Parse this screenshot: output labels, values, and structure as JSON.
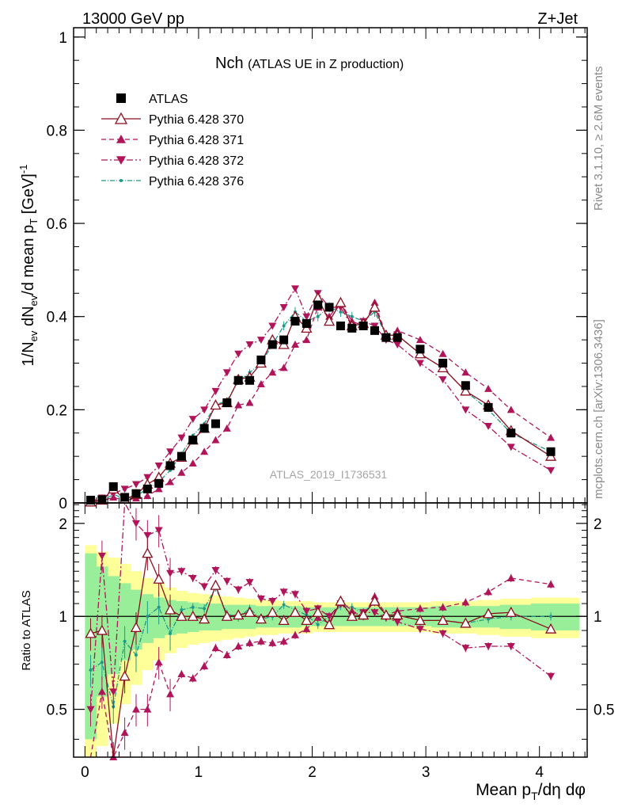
{
  "header": {
    "energy": "13000 GeV pp",
    "process": "Z+Jet"
  },
  "side": {
    "rivet": "Rivet 3.1.10, ≥ 2.6M events",
    "source": "mcplots.cern.ch [arXiv:1306.3436]"
  },
  "chart_data": [
    {
      "type": "line",
      "title": "Nch",
      "subtitle": "(ATLAS UE in Z production)",
      "watermark": "ATLAS_2019_I1736531",
      "ylabel": {
        "base1": "1/N",
        "sub1": "ev",
        "base2": " dN",
        "sub2": "ev",
        "base3": "/d mean p",
        "sub3": "T",
        "base4": " [GeV]",
        "sup4": "-1"
      },
      "xlim": [
        -0.1,
        4.42
      ],
      "ylim": [
        0,
        1.02
      ],
      "yticks": [
        0,
        0.2,
        0.4,
        0.6,
        0.8,
        1
      ],
      "ytick_labels": [
        "0",
        "0.2",
        "0.4",
        "0.6",
        "0.8",
        "1"
      ],
      "legend_position": "top-left",
      "x": [
        0.05,
        0.15,
        0.25,
        0.35,
        0.45,
        0.55,
        0.65,
        0.75,
        0.85,
        0.95,
        1.05,
        1.15,
        1.25,
        1.35,
        1.45,
        1.55,
        1.65,
        1.75,
        1.85,
        1.95,
        2.05,
        2.15,
        2.25,
        2.35,
        2.45,
        2.55,
        2.65,
        2.75,
        2.95,
        3.15,
        3.35,
        3.55,
        3.75,
        4.1
      ],
      "series": [
        {
          "name": "ATLAS",
          "color": "#000000",
          "marker": "square",
          "dash": "none",
          "values": [
            0.006,
            0.007,
            0.035,
            0.012,
            0.02,
            0.03,
            0.042,
            0.08,
            0.1,
            0.135,
            0.16,
            0.17,
            0.215,
            0.263,
            0.263,
            0.307,
            0.34,
            0.35,
            0.39,
            0.385,
            0.425,
            0.42,
            0.38,
            0.375,
            0.38,
            0.37,
            0.355,
            0.355,
            0.33,
            0.3,
            0.252,
            0.205,
            0.15,
            0.11
          ]
        },
        {
          "name": "Pythia 6.428 370",
          "color": "#8b0f1f",
          "marker": "triangle-up-open",
          "dash": "none",
          "values": [
            0.002,
            0.006,
            0.03,
            0.008,
            0.018,
            0.04,
            0.055,
            0.085,
            0.098,
            0.135,
            0.16,
            0.21,
            0.215,
            0.265,
            0.27,
            0.3,
            0.35,
            0.34,
            0.4,
            0.375,
            0.44,
            0.39,
            0.43,
            0.38,
            0.385,
            0.42,
            0.36,
            0.36,
            0.32,
            0.29,
            0.24,
            0.21,
            0.155,
            0.1
          ]
        },
        {
          "name": "Pythia 6.428 371",
          "color": "#b0155a",
          "marker": "triangle-up",
          "dash": "6,4",
          "values": [
            0.001,
            0.004,
            0.012,
            0.005,
            0.01,
            0.015,
            0.03,
            0.045,
            0.065,
            0.085,
            0.11,
            0.135,
            0.16,
            0.21,
            0.215,
            0.255,
            0.28,
            0.29,
            0.34,
            0.35,
            0.42,
            0.4,
            0.43,
            0.39,
            0.38,
            0.43,
            0.36,
            0.37,
            0.35,
            0.32,
            0.28,
            0.245,
            0.2,
            0.14
          ]
        },
        {
          "name": "Pythia 6.428 372",
          "color": "#b0155a",
          "marker": "triangle-down",
          "dash": "8,3,2,3",
          "values": [
            0.003,
            0.011,
            0.02,
            0.03,
            0.04,
            0.055,
            0.08,
            0.11,
            0.14,
            0.18,
            0.2,
            0.24,
            0.28,
            0.32,
            0.34,
            0.35,
            0.38,
            0.42,
            0.46,
            0.4,
            0.45,
            0.42,
            0.42,
            0.38,
            0.39,
            0.38,
            0.35,
            0.34,
            0.3,
            0.265,
            0.2,
            0.165,
            0.12,
            0.07
          ]
        },
        {
          "name": "Pythia 6.428 376",
          "color": "#1f9a8a",
          "marker": "dot",
          "dash": "6,2,1,2",
          "values": [
            0.004,
            0.005,
            0.018,
            0.01,
            0.015,
            0.03,
            0.045,
            0.07,
            0.105,
            0.145,
            0.17,
            0.21,
            0.22,
            0.26,
            0.28,
            0.3,
            0.34,
            0.38,
            0.41,
            0.39,
            0.4,
            0.42,
            0.41,
            0.4,
            0.39,
            0.41,
            0.36,
            0.36,
            0.32,
            0.29,
            0.24,
            0.2,
            0.15,
            0.11
          ]
        }
      ]
    },
    {
      "type": "line",
      "ylabel": "Ratio to ATLAS",
      "xlabel": {
        "base1": "Mean p",
        "sub1": "T",
        "base2": "/dη dφ"
      },
      "xlim": [
        -0.1,
        4.42
      ],
      "ylim": [
        0.35,
        2.33
      ],
      "xticks": [
        0,
        1,
        2,
        3,
        4
      ],
      "xtick_labels": [
        "0",
        "1",
        "2",
        "3",
        "4"
      ],
      "yticks": [
        0.5,
        1,
        2
      ],
      "ytick_labels": [
        "0.5",
        "1",
        "2"
      ],
      "x": [
        0.05,
        0.15,
        0.25,
        0.35,
        0.45,
        0.55,
        0.65,
        0.75,
        0.85,
        0.95,
        1.05,
        1.15,
        1.25,
        1.35,
        1.45,
        1.55,
        1.65,
        1.75,
        1.85,
        1.95,
        2.05,
        2.15,
        2.25,
        2.35,
        2.45,
        2.55,
        2.65,
        2.75,
        2.95,
        3.15,
        3.35,
        3.55,
        3.75,
        4.1
      ],
      "band_inner": [
        0.4,
        0.55,
        0.65,
        0.72,
        0.78,
        0.82,
        0.85,
        0.87,
        0.88,
        0.89,
        0.9,
        0.9,
        0.91,
        0.91,
        0.91,
        0.92,
        0.92,
        0.92,
        0.92,
        0.93,
        0.93,
        0.93,
        0.93,
        0.93,
        0.93,
        0.93,
        0.93,
        0.93,
        0.93,
        0.92,
        0.92,
        0.92,
        0.91,
        0.9
      ],
      "band_outer": [
        0.3,
        0.38,
        0.45,
        0.52,
        0.6,
        0.67,
        0.72,
        0.76,
        0.79,
        0.81,
        0.82,
        0.83,
        0.84,
        0.85,
        0.86,
        0.87,
        0.87,
        0.88,
        0.88,
        0.88,
        0.89,
        0.89,
        0.89,
        0.89,
        0.89,
        0.89,
        0.89,
        0.89,
        0.89,
        0.88,
        0.88,
        0.87,
        0.86,
        0.85
      ],
      "series": [
        {
          "name": "Pythia 6.428 370",
          "color": "#8b0f1f",
          "marker": "triangle-up-open",
          "dash": "none",
          "values": [
            0.88,
            0.9,
            0.2,
            0.64,
            0.92,
            1.6,
            1.32,
            1.05,
            1.0,
            1.0,
            0.98,
            1.26,
            1.0,
            1.01,
            1.03,
            0.98,
            1.03,
            0.97,
            1.03,
            0.97,
            1.03,
            0.94,
            1.12,
            1.0,
            1.01,
            1.12,
            1.01,
            1.01,
            0.97,
            0.97,
            0.95,
            1.02,
            1.03,
            0.91
          ]
        },
        {
          "name": "Pythia 6.428 371",
          "color": "#b0155a",
          "marker": "triangle-up",
          "dash": "6,4",
          "values": [
            0.2,
            0.57,
            0.35,
            0.42,
            0.5,
            0.5,
            0.71,
            0.56,
            0.65,
            0.63,
            0.69,
            0.79,
            0.75,
            0.8,
            0.82,
            0.83,
            0.82,
            0.83,
            0.87,
            0.91,
            0.99,
            0.95,
            1.13,
            1.04,
            1.0,
            1.16,
            1.01,
            1.04,
            1.06,
            1.07,
            1.11,
            1.2,
            1.33,
            1.27
          ]
        },
        {
          "name": "Pythia 6.428 372",
          "color": "#b0155a",
          "marker": "triangle-down",
          "dash": "8,3,2,3",
          "values": [
            0.5,
            1.57,
            0.57,
            2.5,
            2.0,
            1.83,
            1.9,
            1.38,
            1.4,
            1.33,
            1.25,
            1.41,
            1.3,
            1.22,
            1.29,
            1.14,
            1.12,
            1.2,
            1.18,
            1.04,
            1.06,
            1.0,
            1.1,
            1.01,
            1.03,
            1.03,
            0.99,
            0.96,
            0.91,
            0.88,
            0.79,
            0.8,
            0.8,
            0.64
          ]
        },
        {
          "name": "Pythia 6.428 376",
          "color": "#1f9a8a",
          "marker": "dot",
          "dash": "6,2,1,2",
          "values": [
            0.67,
            0.71,
            0.51,
            0.83,
            0.75,
            1.0,
            1.07,
            0.88,
            1.05,
            1.07,
            1.06,
            1.24,
            1.02,
            0.99,
            1.06,
            0.98,
            1.0,
            1.09,
            1.05,
            1.01,
            0.94,
            1.0,
            1.08,
            1.07,
            1.03,
            1.11,
            1.01,
            1.01,
            0.97,
            0.97,
            0.95,
            0.98,
            1.0,
            1.0
          ]
        }
      ]
    }
  ]
}
